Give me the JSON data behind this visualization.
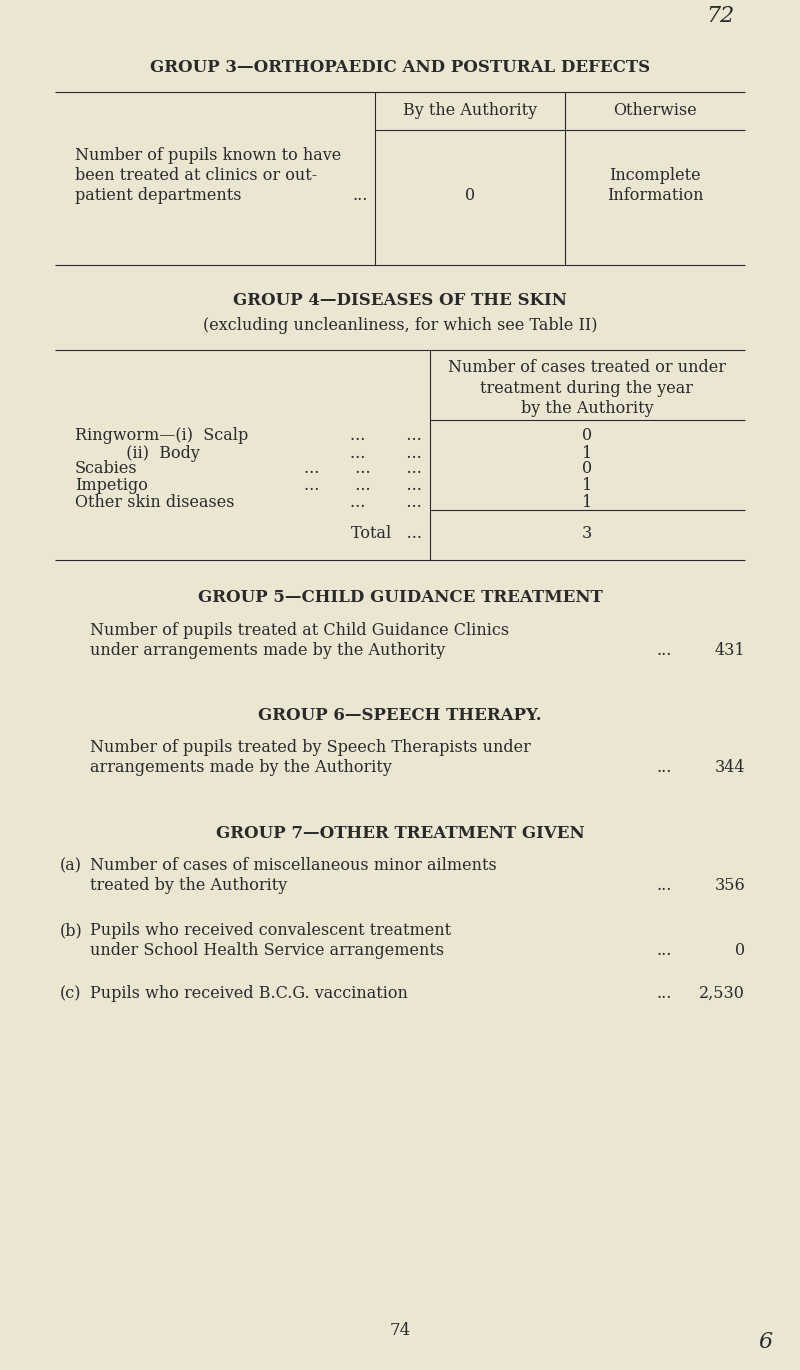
{
  "bg_color": "#eae6d2",
  "text_color": "#2a2a2a",
  "page_number": "72",
  "page_bottom": "74",
  "handwritten_bottom": "6",
  "group3_title": "GROUP 3—ORTHOPAEDIC AND POSTURAL DEFECTS",
  "group3_col1": "By the Authority",
  "group3_col2": "Otherwise",
  "group3_val1": "0",
  "group3_val2_line1": "Incomplete",
  "group3_val2_line2": "Information",
  "group4_title": "GROUP 4—DISEASES OF THE SKIN",
  "group4_subtitle": "(excluding uncleanliness, for which see Table II)",
  "group4_col_h1": "Number of cases treated or under",
  "group4_col_h2": "treatment during the year",
  "group4_col_h3": "by the Authority",
  "group4_row1_label": "Ringworm—(i)  Scalp",
  "group4_row1_dots": "...        ...",
  "group4_row1_val": "0",
  "group4_row2_label": "          (ii)  Body",
  "group4_row2_dots": "...        ...",
  "group4_row2_val": "1",
  "group4_row3_label": "Scabies",
  "group4_row3_dots": "...       ...       ...",
  "group4_row3_val": "0",
  "group4_row4_label": "Impetigo",
  "group4_row4_dots": "...       ...       ...",
  "group4_row4_val": "1",
  "group4_row5_label": "Other skin diseases",
  "group4_row5_dots": "...        ...",
  "group4_row5_val": "1",
  "group4_total_label": "Total   ...",
  "group4_total_val": "3",
  "group5_title": "GROUP 5—CHILD GUIDANCE TREATMENT",
  "group5_text1": "Number of pupils treated at Child Guidance Clinics",
  "group5_text2": "under arrangements made by the Authority",
  "group5_dots": "...",
  "group5_val": "431",
  "group6_title": "GROUP 6—SPEECH THERAPY.",
  "group6_text1": "Number of pupils treated by Speech Therapists under",
  "group6_text2": "arrangements made by the Authority",
  "group6_dots": "...",
  "group6_val": "344",
  "group7_title": "GROUP 7—OTHER TREATMENT GIVEN",
  "group7a_label": "(a)",
  "group7a_text1": "Number of cases of miscellaneous minor ailments",
  "group7a_text2": "treated by the Authority",
  "group7a_dots": "...",
  "group7a_val": "356",
  "group7b_label": "(b)",
  "group7b_text1": "Pupils who received convalescent treatment",
  "group7b_text2": "under School Health Service arrangements",
  "group7b_dots": "...",
  "group7b_val": "0",
  "group7c_label": "(c)",
  "group7c_text": "Pupils who received B.C.G. vaccination",
  "group7c_dots": "...",
  "group7c_val": "2,530"
}
